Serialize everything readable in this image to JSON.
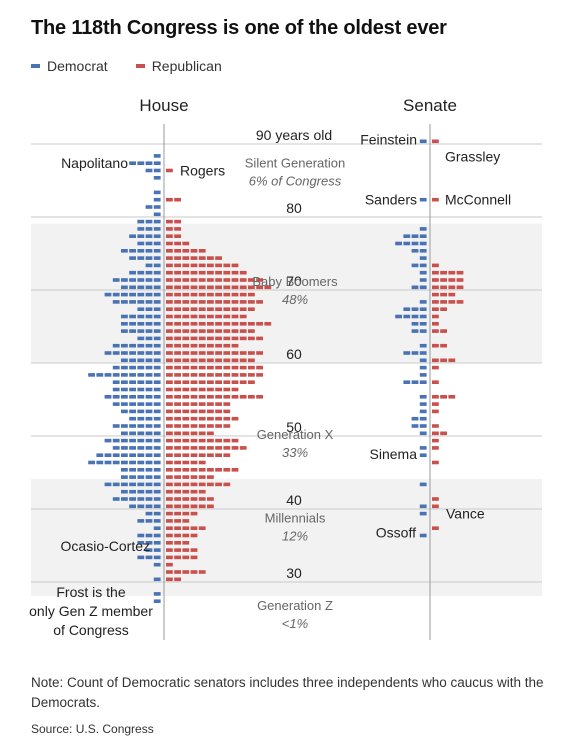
{
  "title": "The 118th Congress is one of the oldest ever",
  "legend": [
    {
      "label": "Democrat",
      "color": "#4a73b5"
    },
    {
      "label": "Republican",
      "color": "#c8514d"
    }
  ],
  "note": "Note: Count of Democratic senators includes three independents who caucus with the Democrats.",
  "source": "Source: U.S. Congress",
  "chart_data": {
    "type": "bar",
    "y_axis": "age",
    "ylim": [
      24,
      92
    ],
    "age_ticks": [
      {
        "age": 90,
        "label": "90 years old"
      },
      {
        "age": 80,
        "label": "80"
      },
      {
        "age": 70,
        "label": "70"
      },
      {
        "age": 60,
        "label": "60"
      },
      {
        "age": 50,
        "label": "50"
      },
      {
        "age": 40,
        "label": "40"
      },
      {
        "age": 30,
        "label": "30"
      }
    ],
    "panels": [
      "House",
      "Senate"
    ],
    "generations": [
      {
        "name": "Silent Generation",
        "share": "6% of Congress",
        "from": 78,
        "to": 92,
        "shaded": false
      },
      {
        "name": "Baby Boomers",
        "share": "48%",
        "from": 59,
        "to": 77,
        "shaded": true
      },
      {
        "name": "Generation X",
        "share": "33%",
        "from": 43,
        "to": 58,
        "shaded": false
      },
      {
        "name": "Millennials",
        "share": "12%",
        "from": 27,
        "to": 42,
        "shaded": true
      },
      {
        "name": "Generation Z",
        "share": "<1%",
        "from": 24,
        "to": 26,
        "shaded": false
      }
    ],
    "house": {
      "series": [
        {
          "name": "Democrat",
          "by_age": {
            "26": 1,
            "27": 1,
            "28": 0,
            "29": 1,
            "30": 0,
            "31": 1,
            "32": 3,
            "33": 2,
            "34": 3,
            "35": 3,
            "36": 1,
            "37": 3,
            "38": 2,
            "39": 4,
            "40": 6,
            "41": 5,
            "42": 7,
            "43": 5,
            "44": 5,
            "45": 9,
            "46": 8,
            "47": 6,
            "48": 7,
            "49": 5,
            "50": 6,
            "51": 4,
            "52": 5,
            "53": 6,
            "54": 7,
            "55": 6,
            "56": 6,
            "57": 9,
            "58": 6,
            "59": 5,
            "60": 7,
            "61": 6,
            "62": 3,
            "63": 5,
            "64": 5,
            "65": 5,
            "66": 3,
            "67": 6,
            "68": 7,
            "69": 5,
            "70": 6,
            "71": 4,
            "72": 2,
            "73": 4,
            "74": 5,
            "75": 3,
            "76": 4,
            "77": 3,
            "78": 3,
            "79": 1,
            "80": 2,
            "81": 1,
            "82": 1,
            "83": 0,
            "84": 1,
            "85": 2,
            "86": 4,
            "87": 1
          }
        },
        {
          "name": "Republican",
          "by_age": {
            "26": 0,
            "27": 0,
            "28": 0,
            "29": 2,
            "30": 5,
            "31": 1,
            "32": 4,
            "33": 4,
            "34": 3,
            "35": 4,
            "36": 5,
            "37": 3,
            "38": 4,
            "39": 6,
            "40": 6,
            "41": 5,
            "42": 8,
            "43": 6,
            "44": 9,
            "45": 5,
            "46": 8,
            "47": 10,
            "48": 9,
            "49": 6,
            "50": 8,
            "51": 9,
            "52": 8,
            "53": 8,
            "54": 12,
            "55": 9,
            "56": 11,
            "57": 12,
            "58": 12,
            "59": 11,
            "60": 12,
            "61": 9,
            "62": 12,
            "63": 11,
            "64": 13,
            "65": 10,
            "66": 11,
            "67": 12,
            "68": 11,
            "69": 13,
            "70": 12,
            "71": 10,
            "72": 9,
            "73": 7,
            "74": 5,
            "75": 3,
            "76": 2,
            "77": 2,
            "78": 2,
            "79": 0,
            "80": 0,
            "81": 2,
            "82": 0,
            "83": 0,
            "84": 0,
            "85": 1,
            "86": 0,
            "87": 0
          }
        }
      ],
      "annotations": [
        {
          "label": "Napolitano",
          "age": 86
        },
        {
          "label": "Rogers",
          "age": 85
        },
        {
          "label": "Ocasio-Cortez",
          "age": 33
        },
        {
          "label": "Frost is the only Gen Z member of Congress",
          "age": 26
        }
      ]
    },
    "senate": {
      "series": [
        {
          "name": "Democrat",
          "by_age": {
            "35": 1,
            "38": 1,
            "39": 1,
            "42": 1,
            "45": 0,
            "46": 1,
            "47": 1,
            "48": 0,
            "49": 1,
            "50": 2,
            "51": 2,
            "52": 1,
            "53": 1,
            "54": 1,
            "56": 3,
            "57": 1,
            "58": 1,
            "59": 1,
            "60": 3,
            "61": 1,
            "62": 0,
            "63": 2,
            "64": 2,
            "65": 4,
            "66": 3,
            "67": 1,
            "68": 0,
            "69": 2,
            "70": 1,
            "71": 1,
            "72": 2,
            "73": 1,
            "74": 2,
            "75": 4,
            "76": 3,
            "77": 1,
            "78": 0,
            "79": 0,
            "80": 0,
            "81": 1,
            "89": 1
          }
        },
        {
          "name": "Republican",
          "by_age": {
            "36": 1,
            "37": 0,
            "38": 0,
            "39": 1,
            "40": 1,
            "41": 0,
            "42": 0,
            "45": 1,
            "47": 1,
            "48": 1,
            "49": 2,
            "50": 1,
            "51": 0,
            "52": 1,
            "53": 1,
            "54": 3,
            "55": 0,
            "56": 1,
            "57": 0,
            "58": 1,
            "59": 3,
            "60": 0,
            "61": 2,
            "62": 0,
            "63": 2,
            "64": 1,
            "65": 1,
            "66": 2,
            "67": 4,
            "68": 3,
            "69": 4,
            "70": 4,
            "71": 4,
            "72": 1,
            "73": 0,
            "74": 0,
            "75": 0,
            "76": 0,
            "77": 0,
            "78": 0,
            "79": 0,
            "80": 0,
            "81": 1,
            "89": 1
          }
        }
      ],
      "annotations": [
        {
          "label": "Feinstein",
          "age": 89
        },
        {
          "label": "Grassley",
          "age": 89
        },
        {
          "label": "Sanders",
          "age": 81
        },
        {
          "label": "McConnell",
          "age": 81
        },
        {
          "label": "Sinema",
          "age": 46
        },
        {
          "label": "Vance",
          "age": 38
        },
        {
          "label": "Ossoff",
          "age": 35
        }
      ]
    }
  }
}
